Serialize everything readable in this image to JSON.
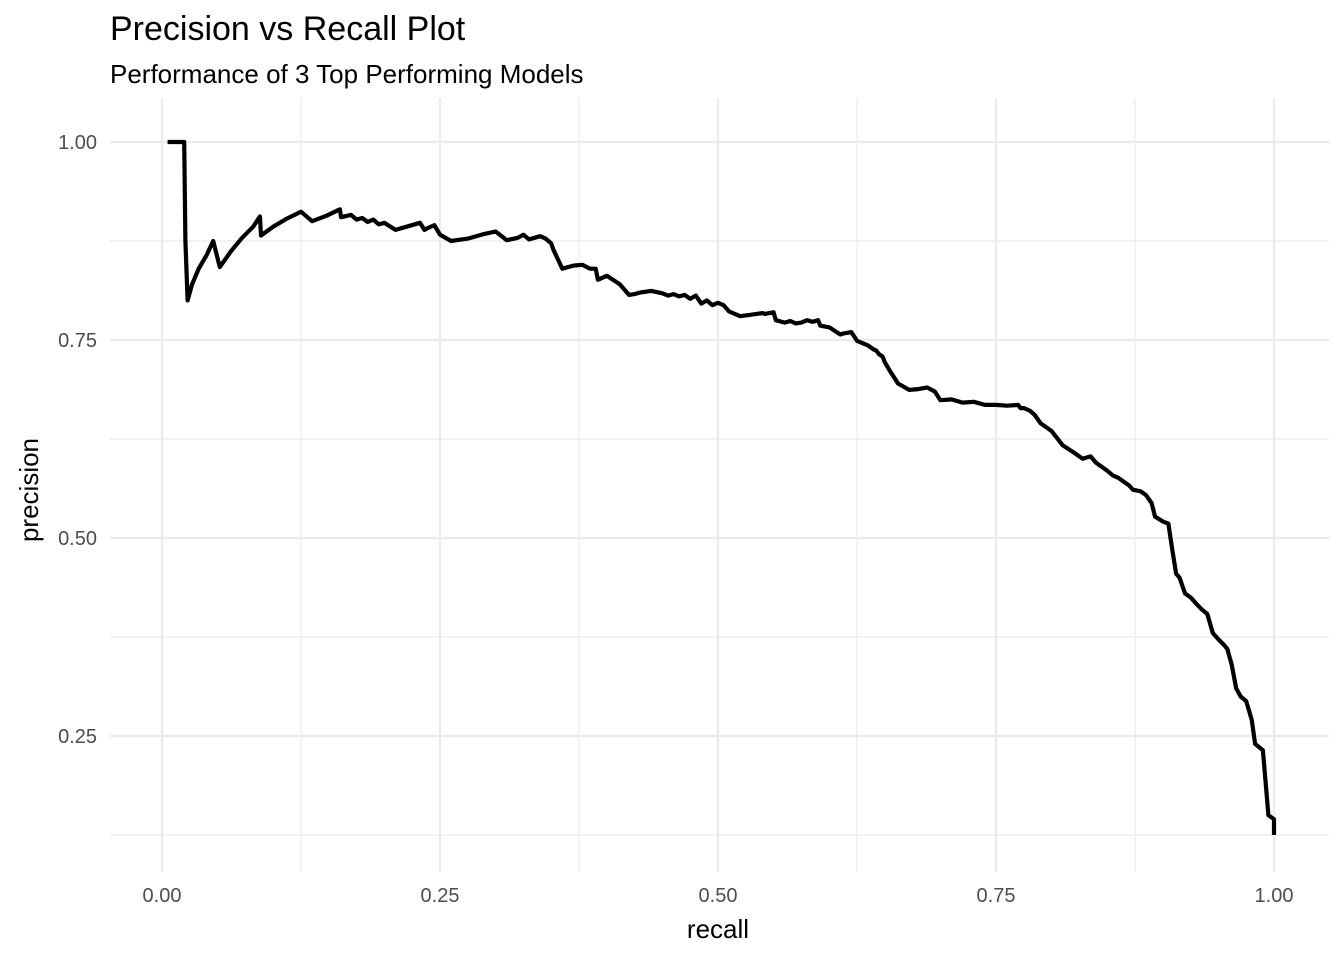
{
  "chart_data": {
    "type": "line",
    "title": "Precision vs Recall Plot",
    "subtitle": "Performance of 3 Top Performing Models",
    "xlabel": "recall",
    "ylabel": "precision",
    "xlim": [
      -0.05,
      1.05
    ],
    "ylim": [
      0.13,
      1.04
    ],
    "x_ticks": [
      "0.00",
      "0.25",
      "0.50",
      "0.75",
      "1.00"
    ],
    "y_ticks": [
      "0.25",
      "0.50",
      "0.75",
      "1.00"
    ],
    "grid": true,
    "line_color": "#000000",
    "grid_color": "#ebebeb",
    "series": [
      {
        "x": [
          0.005,
          0.02,
          0.021,
          0.023,
          0.027,
          0.033,
          0.04,
          0.046,
          0.052,
          0.062,
          0.072,
          0.082,
          0.088,
          0.089,
          0.1,
          0.112,
          0.125,
          0.135,
          0.148,
          0.16,
          0.161,
          0.17,
          0.175,
          0.18,
          0.185,
          0.19,
          0.195,
          0.2,
          0.21,
          0.22,
          0.232,
          0.236,
          0.24,
          0.245,
          0.25,
          0.26,
          0.275,
          0.29,
          0.3,
          0.31,
          0.32,
          0.325,
          0.33,
          0.335,
          0.34,
          0.345,
          0.35,
          0.352,
          0.36,
          0.365,
          0.37,
          0.378,
          0.385,
          0.39,
          0.392,
          0.4,
          0.41,
          0.412,
          0.42,
          0.425,
          0.43,
          0.44,
          0.45,
          0.455,
          0.46,
          0.465,
          0.47,
          0.475,
          0.48,
          0.485,
          0.49,
          0.495,
          0.5,
          0.505,
          0.51,
          0.52,
          0.53,
          0.54,
          0.542,
          0.55,
          0.552,
          0.56,
          0.565,
          0.57,
          0.575,
          0.58,
          0.585,
          0.59,
          0.592,
          0.6,
          0.61,
          0.612,
          0.62,
          0.625,
          0.63,
          0.635,
          0.64,
          0.642,
          0.645,
          0.648,
          0.65,
          0.655,
          0.662,
          0.672,
          0.68,
          0.688,
          0.695,
          0.7,
          0.71,
          0.72,
          0.73,
          0.74,
          0.75,
          0.76,
          0.77,
          0.772,
          0.775,
          0.78,
          0.782,
          0.785,
          0.79,
          0.8,
          0.81,
          0.82,
          0.828,
          0.83,
          0.835,
          0.84,
          0.845,
          0.85,
          0.855,
          0.86,
          0.865,
          0.87,
          0.873,
          0.88,
          0.885,
          0.89,
          0.893,
          0.9,
          0.905,
          0.908,
          0.912,
          0.915,
          0.92,
          0.925,
          0.93,
          0.935,
          0.94,
          0.945,
          0.95,
          0.955,
          0.958,
          0.962,
          0.966,
          0.97,
          0.975,
          0.978,
          0.98,
          0.983,
          0.99,
          0.995,
          1.0,
          1.0
        ],
        "y": [
          1.0,
          1.0,
          0.875,
          0.8,
          0.82,
          0.84,
          0.857,
          0.875,
          0.842,
          0.862,
          0.879,
          0.893,
          0.906,
          0.882,
          0.893,
          0.903,
          0.912,
          0.9,
          0.907,
          0.915,
          0.905,
          0.908,
          0.902,
          0.904,
          0.899,
          0.902,
          0.896,
          0.898,
          0.889,
          0.893,
          0.898,
          0.889,
          0.892,
          0.895,
          0.883,
          0.875,
          0.878,
          0.884,
          0.887,
          0.876,
          0.879,
          0.883,
          0.877,
          0.879,
          0.881,
          0.878,
          0.872,
          0.864,
          0.84,
          0.842,
          0.844,
          0.845,
          0.84,
          0.84,
          0.826,
          0.831,
          0.822,
          0.82,
          0.807,
          0.808,
          0.81,
          0.812,
          0.809,
          0.806,
          0.808,
          0.805,
          0.807,
          0.802,
          0.806,
          0.796,
          0.8,
          0.794,
          0.797,
          0.794,
          0.786,
          0.78,
          0.782,
          0.784,
          0.783,
          0.785,
          0.775,
          0.772,
          0.774,
          0.771,
          0.772,
          0.775,
          0.773,
          0.775,
          0.768,
          0.766,
          0.757,
          0.758,
          0.76,
          0.749,
          0.746,
          0.743,
          0.738,
          0.737,
          0.732,
          0.729,
          0.722,
          0.71,
          0.695,
          0.687,
          0.688,
          0.69,
          0.685,
          0.674,
          0.675,
          0.671,
          0.672,
          0.668,
          0.668,
          0.667,
          0.668,
          0.664,
          0.664,
          0.661,
          0.659,
          0.655,
          0.645,
          0.635,
          0.617,
          0.608,
          0.6,
          0.601,
          0.603,
          0.595,
          0.59,
          0.585,
          0.579,
          0.576,
          0.571,
          0.566,
          0.561,
          0.559,
          0.554,
          0.544,
          0.527,
          0.521,
          0.518,
          0.49,
          0.455,
          0.45,
          0.43,
          0.425,
          0.417,
          0.41,
          0.404,
          0.38,
          0.372,
          0.365,
          0.36,
          0.34,
          0.31,
          0.3,
          0.294,
          0.28,
          0.27,
          0.24,
          0.232,
          0.15,
          0.145,
          0.125
        ]
      }
    ]
  }
}
